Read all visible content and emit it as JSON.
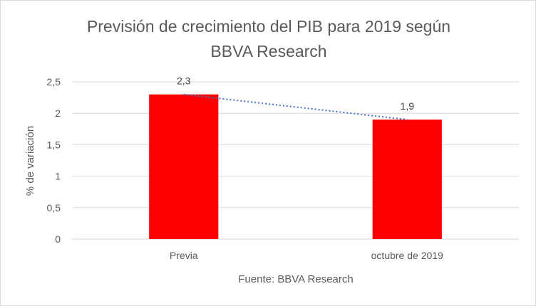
{
  "chart_data": {
    "type": "bar",
    "title_lines": [
      "Previsión de crecimiento del PIB para 2019 según",
      "BBVA Research"
    ],
    "categories": [
      "Previa",
      "octubre de 2019"
    ],
    "values": [
      2.3,
      1.9
    ],
    "data_labels": [
      "2,3",
      "1,9"
    ],
    "ylabel": "% de variación",
    "xlabel": "Fuente: BBVA Research",
    "ylim": [
      0,
      2.5
    ],
    "y_ticks": [
      0,
      0.5,
      1,
      1.5,
      2,
      2.5
    ],
    "y_tick_labels": [
      "0",
      "0,5",
      "1",
      "1,5",
      "2",
      "2,5"
    ],
    "grid": true,
    "legend": "none",
    "trendline": "linear, dotted",
    "colors": {
      "bar": "#ff0000",
      "trendline": "#4472c4",
      "grid": "#d9d9d9"
    }
  }
}
